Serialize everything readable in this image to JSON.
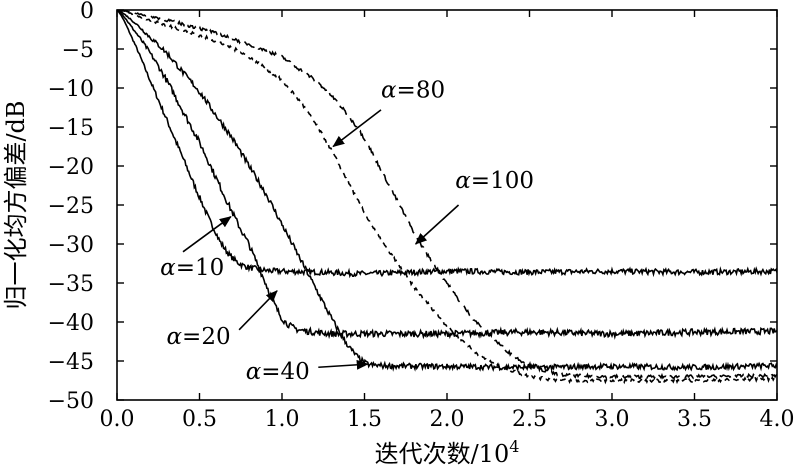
{
  "chart_data": {
    "type": "line",
    "title": "",
    "xlabel": "迭代次数/10",
    "xlabel_exponent": "4",
    "ylabel": "归一化均方偏差/dB",
    "xlim": [
      0,
      4.0
    ],
    "ylim": [
      -50,
      0
    ],
    "xticks": [
      "0.0",
      "0.5",
      "1.0",
      "1.5",
      "2.0",
      "2.5",
      "3.0",
      "3.5",
      "4.0"
    ],
    "xtick_values": [
      0,
      0.5,
      1.0,
      1.5,
      2.0,
      2.5,
      3.0,
      3.5,
      4.0
    ],
    "yticks": [
      "0",
      "−5",
      "−10",
      "−15",
      "−20",
      "−25",
      "−30",
      "−35",
      "−40",
      "−45",
      "−50"
    ],
    "ytick_values": [
      0,
      -5,
      -10,
      -15,
      -20,
      -25,
      -30,
      -35,
      -40,
      -45,
      -50
    ],
    "grid": false,
    "series": [
      {
        "name": "α=10",
        "dash": "solid",
        "noise": 0.35,
        "x": [
          0,
          0.1,
          0.2,
          0.3,
          0.4,
          0.5,
          0.6,
          0.65,
          0.7,
          0.75,
          0.8,
          0.85,
          0.9,
          1.0,
          1.2,
          1.5,
          2.0,
          2.5,
          3.0,
          3.5,
          4.0
        ],
        "y": [
          0,
          -4,
          -9,
          -14,
          -19,
          -24,
          -28.5,
          -30.5,
          -31.8,
          -32.6,
          -33.0,
          -33.2,
          -33.4,
          -33.5,
          -33.6,
          -33.8,
          -33.5,
          -33.6,
          -33.5,
          -33.6,
          -33.5
        ]
      },
      {
        "name": "α=20",
        "dash": "solid",
        "noise": 0.4,
        "x": [
          0,
          0.1,
          0.2,
          0.3,
          0.4,
          0.5,
          0.6,
          0.7,
          0.8,
          0.85,
          0.9,
          0.95,
          1.0,
          1.05,
          1.1,
          1.2,
          1.3,
          1.5,
          2.0,
          2.5,
          3.0,
          3.5,
          4.0
        ],
        "y": [
          0,
          -2.5,
          -5.5,
          -9,
          -13,
          -17,
          -21.5,
          -26,
          -30,
          -32.5,
          -35,
          -37.5,
          -39.5,
          -40.5,
          -41,
          -41.3,
          -41.5,
          -41.5,
          -41.5,
          -41.3,
          -41.5,
          -41.3,
          -41.2
        ]
      },
      {
        "name": "α=40",
        "dash": "solid",
        "noise": 0.35,
        "x": [
          0,
          0.1,
          0.2,
          0.3,
          0.4,
          0.5,
          0.6,
          0.7,
          0.8,
          0.9,
          1.0,
          1.1,
          1.2,
          1.3,
          1.4,
          1.5,
          1.6,
          2.0,
          2.5,
          3.0,
          3.5,
          4.0
        ],
        "y": [
          0,
          -1.5,
          -3.5,
          -5.5,
          -8,
          -10.5,
          -13.5,
          -16.5,
          -20,
          -23.5,
          -27.5,
          -31.5,
          -35.5,
          -39.5,
          -43,
          -45.2,
          -45.6,
          -45.7,
          -45.8,
          -45.7,
          -45.8,
          -45.6
        ]
      },
      {
        "name": "α=80",
        "dash": "short",
        "noise": 0.2,
        "x": [
          0,
          0.2,
          0.4,
          0.6,
          0.8,
          1.0,
          1.1,
          1.2,
          1.3,
          1.4,
          1.5,
          1.6,
          1.7,
          1.8,
          1.9,
          2.0,
          2.1,
          2.2,
          2.3,
          2.4,
          2.5,
          2.6,
          2.7,
          3.0,
          3.5,
          4.0
        ],
        "y": [
          0,
          -1.3,
          -2.6,
          -4.0,
          -6.0,
          -9.0,
          -11.5,
          -14.5,
          -18,
          -22,
          -26,
          -29.5,
          -32.5,
          -35.5,
          -38,
          -40.5,
          -42.5,
          -44.3,
          -45.5,
          -46.3,
          -46.9,
          -47.3,
          -47.5,
          -47.5,
          -47.5,
          -47.3
        ]
      },
      {
        "name": "α=100",
        "dash": "long",
        "noise": 0.2,
        "x": [
          0,
          0.2,
          0.4,
          0.6,
          0.8,
          1.0,
          1.1,
          1.2,
          1.3,
          1.4,
          1.5,
          1.6,
          1.7,
          1.8,
          1.9,
          2.0,
          2.1,
          2.2,
          2.3,
          2.4,
          2.5,
          2.6,
          2.7,
          3.0,
          3.5,
          4.0
        ],
        "y": [
          0,
          -0.8,
          -1.8,
          -3.0,
          -4.4,
          -6.0,
          -7.5,
          -9.0,
          -11.0,
          -13.5,
          -16.5,
          -20.5,
          -24.5,
          -28.5,
          -32,
          -35,
          -38,
          -40.5,
          -42.5,
          -44.3,
          -45.5,
          -46.3,
          -46.8,
          -47.0,
          -47.0,
          -46.9
        ]
      }
    ],
    "annotations": [
      {
        "alpha": "α",
        "eq": "=10",
        "anchor": "end",
        "text_at": [
          0.65,
          -34.0
        ],
        "tip_at": [
          0.69,
          -26.5
        ],
        "tail_at": [
          0.4,
          -31.0
        ]
      },
      {
        "alpha": "α",
        "eq": "=20",
        "anchor": "start",
        "text_at": [
          0.3,
          -42.8
        ],
        "tip_at": [
          0.97,
          -36.0
        ],
        "tail_at": [
          0.74,
          -41.0
        ]
      },
      {
        "alpha": "α",
        "eq": "=40",
        "anchor": "start",
        "text_at": [
          0.78,
          -47.3
        ],
        "tip_at": [
          1.52,
          -45.4
        ],
        "tail_at": [
          1.22,
          -45.8
        ]
      },
      {
        "alpha": "α",
        "eq": "=80",
        "anchor": "start",
        "text_at": [
          1.6,
          -11.2
        ],
        "tip_at": [
          1.31,
          -17.5
        ],
        "tail_at": [
          1.6,
          -12.8
        ]
      },
      {
        "alpha": "α",
        "eq": "=100",
        "anchor": "start",
        "text_at": [
          2.05,
          -22.8
        ],
        "tip_at": [
          1.81,
          -30.0
        ],
        "tail_at": [
          2.07,
          -25.0
        ]
      }
    ]
  }
}
